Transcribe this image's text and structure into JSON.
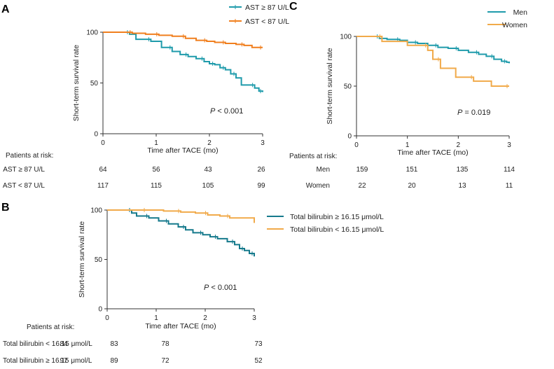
{
  "chart_data": [
    {
      "type": "line",
      "panel_label": "A",
      "title": "",
      "xlabel": "Time after TACE (mo)",
      "ylabel": "Short-term survival rate",
      "xlim": [
        0,
        3
      ],
      "ylim": [
        0,
        100
      ],
      "xticks": [
        0,
        1,
        2,
        3
      ],
      "yticks": [
        0,
        50,
        100
      ],
      "legend_position": "top-right",
      "annotation": {
        "italic": "P",
        "rest": " < 0.001"
      },
      "series": [
        {
          "name": "AST ≥ 87 U/L",
          "color": "#1f9bab",
          "x": [
            0,
            0.5,
            0.62,
            0.9,
            1.1,
            1.3,
            1.45,
            1.6,
            1.75,
            1.9,
            2.0,
            2.1,
            2.2,
            2.3,
            2.4,
            2.5,
            2.6,
            2.85,
            2.93,
            3.0
          ],
          "y": [
            100,
            98,
            93,
            91,
            85,
            81,
            78,
            76,
            74,
            71,
            69,
            68,
            65,
            63,
            59,
            55,
            48,
            45,
            42,
            41
          ]
        },
        {
          "name": "AST < 87 U/L",
          "color": "#f07f1e",
          "x": [
            0,
            0.55,
            0.8,
            1.05,
            1.3,
            1.55,
            1.75,
            1.95,
            2.1,
            2.3,
            2.5,
            2.65,
            2.8,
            3.0
          ],
          "y": [
            100,
            99,
            98,
            97,
            96,
            94,
            92,
            91,
            90,
            89,
            88,
            87,
            85,
            85
          ]
        }
      ],
      "risk_table": {
        "title": "Patients at risk:",
        "rows": [
          {
            "label": "AST ≥ 87 U/L",
            "values": [
              "64",
              "56",
              "43",
              "26"
            ]
          },
          {
            "label": "AST < 87 U/L",
            "values": [
              "117",
              "115",
              "105",
              "99"
            ]
          }
        ]
      }
    },
    {
      "type": "line",
      "panel_label": "B",
      "title": "",
      "xlabel": "Time after TACE (mo)",
      "ylabel": "Short-term survival rate",
      "xlim": [
        0,
        3
      ],
      "ylim": [
        0,
        100
      ],
      "xticks": [
        0,
        1,
        2,
        3
      ],
      "yticks": [
        0,
        50,
        100
      ],
      "legend_position": "right",
      "annotation": {
        "italic": "P",
        "rest": " < 0.001"
      },
      "series": [
        {
          "name": "Total bilirubin ≥ 16.15 μmol/L",
          "color": "#167a8c",
          "x": [
            0,
            0.5,
            0.6,
            0.85,
            1.05,
            1.25,
            1.45,
            1.6,
            1.75,
            1.95,
            2.1,
            2.25,
            2.45,
            2.6,
            2.7,
            2.8,
            2.9,
            3.0
          ],
          "y": [
            100,
            97,
            94,
            92,
            89,
            86,
            83,
            80,
            77,
            75,
            73,
            71,
            68,
            65,
            61,
            59,
            56,
            53
          ]
        },
        {
          "name": "Total bilirubin < 16.15 μmol/L",
          "color": "#f1aa4a",
          "x": [
            0,
            0.8,
            1.15,
            1.5,
            1.8,
            2.05,
            2.3,
            2.5,
            3.0
          ],
          "y": [
            100,
            100,
            99,
            98,
            97,
            95,
            94,
            92,
            87
          ]
        }
      ],
      "risk_table": {
        "title": "Patients at risk:",
        "rows": [
          {
            "label": "Total bilirubin < 16.15 μmol/L",
            "values": [
              "84",
              "83",
              "78",
              "73"
            ]
          },
          {
            "label": "Total bilirubin ≥ 16.15 μmol/L",
            "values": [
              "97",
              "89",
              "72",
              "52"
            ]
          }
        ]
      }
    },
    {
      "type": "line",
      "panel_label": "C",
      "title": "",
      "xlabel": "Time after TACE (mo)",
      "ylabel": "Short-term survival rate",
      "xlim": [
        0,
        3
      ],
      "ylim": [
        0,
        100
      ],
      "xticks": [
        0,
        1,
        2,
        3
      ],
      "yticks": [
        0,
        50,
        100
      ],
      "legend_position": "top-right",
      "annotation": {
        "italic": "P",
        "rest": " = 0.019"
      },
      "series": [
        {
          "name": "Men",
          "color": "#1f9bab",
          "x": [
            0,
            0.45,
            0.6,
            0.85,
            1.0,
            1.2,
            1.4,
            1.6,
            1.8,
            2.0,
            2.2,
            2.4,
            2.55,
            2.7,
            2.85,
            2.95,
            3.0
          ],
          "y": [
            100,
            98,
            97,
            96,
            94,
            93,
            91,
            89,
            88,
            86,
            84,
            82,
            80,
            77,
            75,
            74,
            73
          ]
        },
        {
          "name": "Women",
          "color": "#f1aa4a",
          "x": [
            0,
            0.5,
            1.0,
            1.4,
            1.5,
            1.65,
            1.95,
            2.3,
            2.65,
            3.0
          ],
          "y": [
            100,
            95,
            91,
            86,
            77,
            68,
            59,
            55,
            50,
            50
          ]
        }
      ],
      "risk_table": {
        "title": "Patients at risk:",
        "rows": [
          {
            "label": "Men",
            "values": [
              "159",
              "151",
              "135",
              "114"
            ]
          },
          {
            "label": "Women",
            "values": [
              "22",
              "20",
              "13",
              "11"
            ]
          }
        ]
      }
    }
  ]
}
